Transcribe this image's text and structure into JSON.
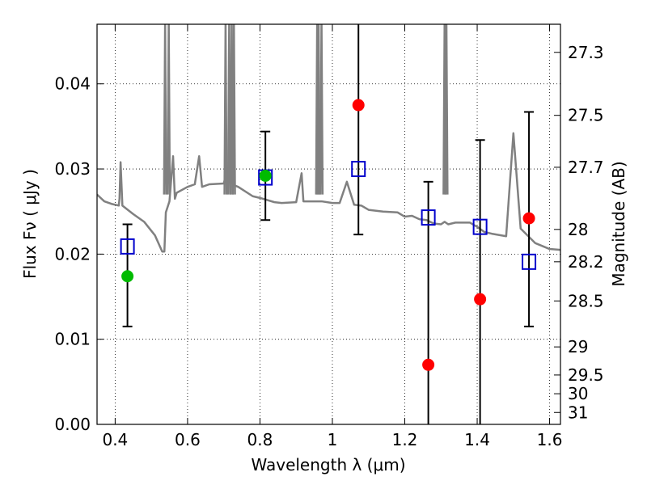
{
  "chart_data": {
    "type": "scatter",
    "xlabel": "Wavelength  λ (μm)",
    "ylabel": "Flux  Fν  ( μJy )",
    "y2label": "Magnitude (AB)",
    "xlim": [
      0.35,
      1.63
    ],
    "ylim": [
      0.0,
      0.047
    ],
    "grid": true,
    "x_ticks": [
      0.4,
      0.6,
      0.8,
      1.0,
      1.2,
      1.4,
      1.6
    ],
    "x_tick_labels": [
      "0.4",
      "0.6",
      "0.8",
      "1",
      "1.2",
      "1.4",
      "1.6"
    ],
    "y_ticks": [
      0.0,
      0.01,
      0.02,
      0.03,
      0.04
    ],
    "y_tick_labels": [
      "0.00",
      "0.01",
      "0.02",
      "0.03",
      "0.04"
    ],
    "y2_tick_labels": [
      "27.3",
      "27.5",
      "27.7",
      "28",
      "28.2",
      "28.5",
      "29",
      "29.5",
      "30",
      "31"
    ],
    "y2_tick_flux": [
      0.0437,
      0.0363,
      0.0302,
      0.0229,
      0.0191,
      0.0145,
      0.0091,
      0.0058,
      0.0036,
      0.0014
    ],
    "colors": {
      "sed": "#808080",
      "model": "#0000cc",
      "observed_red": "#ff0000",
      "observed_green": "#00bb00",
      "errorbar": "#000000"
    },
    "series": [
      {
        "role": "sed",
        "x": [
          0.35,
          0.37,
          0.39,
          0.41,
          0.412,
          0.415,
          0.42,
          0.45,
          0.48,
          0.51,
          0.53,
          0.536,
          0.54,
          0.55,
          0.56,
          0.565,
          0.57,
          0.6,
          0.62,
          0.632,
          0.64,
          0.66,
          0.7,
          0.71,
          0.72,
          0.728,
          0.74,
          0.78,
          0.8,
          0.84,
          0.86,
          0.9,
          0.915,
          0.92,
          0.95,
          0.96,
          0.97,
          1.0,
          1.02,
          1.04,
          1.06,
          1.08,
          1.1,
          1.14,
          1.18,
          1.2,
          1.22,
          1.24,
          1.26,
          1.28,
          1.3,
          1.31,
          1.32,
          1.34,
          1.38,
          1.4,
          1.42,
          1.44,
          1.48,
          1.5,
          1.52,
          1.56,
          1.6,
          1.63
        ],
        "y": [
          0.027,
          0.0262,
          0.0259,
          0.0257,
          0.0265,
          0.0308,
          0.0257,
          0.0247,
          0.0238,
          0.0222,
          0.0203,
          0.0203,
          0.0249,
          0.0262,
          0.0315,
          0.0265,
          0.0272,
          0.0279,
          0.0282,
          0.0315,
          0.0279,
          0.0282,
          0.0283,
          0.0299,
          0.0295,
          0.0281,
          0.0279,
          0.0268,
          0.0266,
          0.0261,
          0.026,
          0.0261,
          0.0295,
          0.0262,
          0.0262,
          0.0262,
          0.0262,
          0.026,
          0.026,
          0.0285,
          0.0258,
          0.0257,
          0.0252,
          0.025,
          0.0249,
          0.0244,
          0.0245,
          0.0241,
          0.024,
          0.0236,
          0.0235,
          0.0238,
          0.0235,
          0.0237,
          0.0237,
          0.0232,
          0.0226,
          0.0224,
          0.0221,
          0.0342,
          0.023,
          0.0213,
          0.0206,
          0.0205
        ]
      },
      {
        "role": "sed-emission-lines",
        "x": [
          0.538,
          0.548,
          0.705,
          0.715,
          0.722,
          0.728,
          0.958,
          0.962,
          0.97,
          1.31,
          1.315
        ],
        "y": [
          0.047,
          0.047,
          0.047,
          0.047,
          0.047,
          0.047,
          0.047,
          0.047,
          0.047,
          0.047,
          0.047
        ]
      },
      {
        "role": "model",
        "x": [
          0.434,
          0.815,
          1.072,
          1.265,
          1.408,
          1.543
        ],
        "y": [
          0.0209,
          0.029,
          0.03,
          0.0243,
          0.0232,
          0.0191
        ]
      },
      {
        "role": "observed",
        "x": [
          0.434,
          0.815,
          1.072,
          1.265,
          1.408,
          1.543
        ],
        "y": [
          0.0174,
          0.0292,
          0.0375,
          0.007,
          0.0147,
          0.0242
        ],
        "y_err_low": [
          0.0115,
          0.024,
          0.0223,
          0.0,
          0.0,
          0.0115
        ],
        "y_err_high": [
          0.0235,
          0.0344,
          0.047,
          0.0285,
          0.0334,
          0.0367
        ],
        "point_colors": [
          "green",
          "green",
          "red",
          "red",
          "red",
          "red"
        ]
      }
    ]
  }
}
